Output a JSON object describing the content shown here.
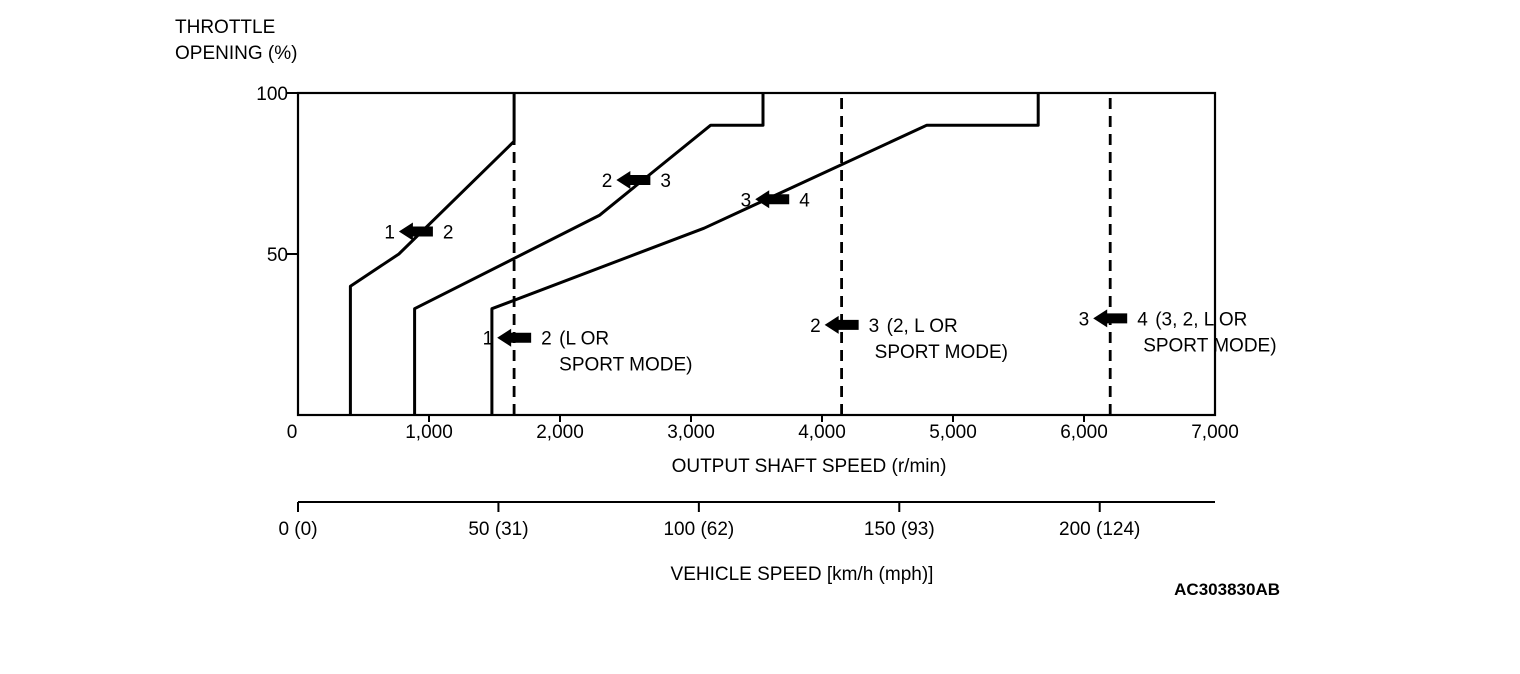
{
  "chart_data": {
    "type": "line",
    "ylabel_lines": [
      "THROTTLE",
      "OPENING (%)"
    ],
    "xlabel": "OUTPUT SHAFT SPEED (r/min)",
    "xlim": [
      0,
      7000
    ],
    "ylim": [
      0,
      100
    ],
    "x_ticks": [
      {
        "value": 0,
        "label": "0"
      },
      {
        "value": 1000,
        "label": "1,000"
      },
      {
        "value": 2000,
        "label": "2,000"
      },
      {
        "value": 3000,
        "label": "3,000"
      },
      {
        "value": 4000,
        "label": "4,000"
      },
      {
        "value": 5000,
        "label": "5,000"
      },
      {
        "value": 6000,
        "label": "6,000"
      },
      {
        "value": 7000,
        "label": "7,000"
      }
    ],
    "y_ticks": [
      {
        "value": 50,
        "label": "50"
      },
      {
        "value": 100,
        "label": "100"
      }
    ],
    "secondary_axis": {
      "label": "VEHICLE SPEED [km/h (mph)]",
      "ticks": [
        {
          "value": 0,
          "label": "0 (0)"
        },
        {
          "value": 50,
          "label": "50 (31)"
        },
        {
          "value": 100,
          "label": "100 (62)"
        },
        {
          "value": 150,
          "label": "150 (93)"
        },
        {
          "value": 200,
          "label": "200 (124)"
        }
      ],
      "rpm_per_kmh": 30.6,
      "max_rpm": 7000
    },
    "series": [
      {
        "from": "1",
        "to": "2",
        "style": "solid",
        "points": [
          [
            400,
            0
          ],
          [
            400,
            40
          ],
          [
            770,
            50
          ],
          [
            1650,
            85
          ],
          [
            1650,
            100
          ]
        ],
        "label_at": [
          900,
          57
        ]
      },
      {
        "from": "2",
        "to": "3",
        "style": "solid",
        "points": [
          [
            890,
            0
          ],
          [
            890,
            33
          ],
          [
            2300,
            62
          ],
          [
            3150,
            90
          ],
          [
            3550,
            90
          ],
          [
            3550,
            100
          ]
        ],
        "label_at": [
          2560,
          73
        ]
      },
      {
        "from": "3",
        "to": "4",
        "style": "solid",
        "points": [
          [
            1480,
            0
          ],
          [
            1480,
            33
          ],
          [
            3100,
            58
          ],
          [
            4800,
            90
          ],
          [
            5650,
            90
          ],
          [
            5650,
            100
          ]
        ],
        "label_at": [
          3620,
          67
        ]
      },
      {
        "from": "1",
        "to": "2",
        "note_lines": [
          "(L OR",
          "SPORT MODE)"
        ],
        "style": "dashed",
        "points": [
          [
            1650,
            0
          ],
          [
            1650,
            85
          ]
        ],
        "label_at": [
          1650,
          24
        ]
      },
      {
        "from": "2",
        "to": "3",
        "note_lines": [
          "(2, L OR",
          "SPORT MODE)"
        ],
        "style": "dashed",
        "points": [
          [
            4150,
            0
          ],
          [
            4150,
            100
          ]
        ],
        "label_at": [
          4150,
          28
        ]
      },
      {
        "from": "3",
        "to": "4",
        "note_lines": [
          "(3, 2, L OR",
          "SPORT MODE)"
        ],
        "style": "dashed",
        "points": [
          [
            6200,
            0
          ],
          [
            6200,
            100
          ]
        ],
        "label_at": [
          6200,
          30
        ]
      }
    ],
    "figure_code": "AC303830AB"
  }
}
